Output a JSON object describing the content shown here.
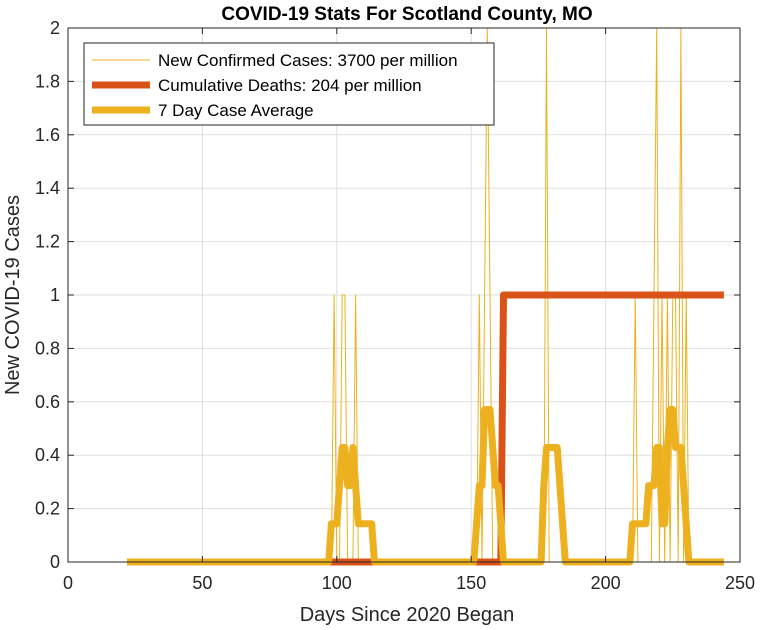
{
  "chart_data": {
    "type": "line",
    "title": "COVID-19 Stats For Scotland County, MO",
    "xlabel": "Days Since 2020 Began",
    "ylabel": "New COVID-19 Cases",
    "xlim": [
      0,
      250
    ],
    "ylim": [
      0,
      2
    ],
    "xticks": [
      0,
      50,
      100,
      150,
      200,
      250
    ],
    "yticks": [
      0,
      0.2,
      0.4,
      0.6,
      0.8,
      1,
      1.2,
      1.4,
      1.6,
      1.8,
      2
    ],
    "xtick_labels": [
      "0",
      "50",
      "100",
      "150",
      "200",
      "250"
    ],
    "ytick_labels": [
      "0",
      "0.2",
      "0.4",
      "0.6",
      "0.8",
      "1",
      "1.2",
      "1.4",
      "1.6",
      "1.8",
      "2"
    ],
    "grid": true,
    "legend_position": "top-left",
    "series": [
      {
        "name": "New Confirmed Cases: 3700 per million",
        "color": "#EDB120",
        "style": "thin",
        "x": [
          22,
          98,
          99,
          100,
          101,
          102,
          103,
          104,
          105,
          106,
          107,
          108,
          109,
          152,
          153,
          154,
          155,
          156,
          157,
          158,
          159,
          160,
          177,
          178,
          179,
          210,
          211,
          212,
          217,
          218,
          219,
          220,
          221,
          222,
          223,
          224,
          225,
          226,
          227,
          228,
          229,
          230,
          231,
          244
        ],
        "y": [
          0,
          0,
          1,
          0,
          0,
          1,
          1,
          0,
          0,
          0,
          1,
          0,
          0,
          0,
          1,
          0,
          1,
          2,
          1,
          0,
          0,
          0,
          0,
          2,
          0,
          0,
          1,
          0,
          0,
          1,
          2,
          0,
          1,
          0,
          1,
          0,
          1,
          1,
          0,
          2,
          0,
          1,
          0,
          0
        ]
      },
      {
        "name": "Cumulative Deaths: 204 per million",
        "color": "#D95319",
        "style": "thick",
        "x": [
          22,
          161,
          162,
          244
        ],
        "y": [
          0,
          0,
          1,
          1
        ]
      },
      {
        "name": "7 Day Case Average",
        "color": "#EDB120",
        "style": "thick",
        "x": [
          22,
          97,
          98,
          99,
          100,
          101,
          102,
          103,
          104,
          105,
          106,
          107,
          108,
          109,
          110,
          111,
          112,
          113,
          114,
          115,
          150,
          151,
          152,
          153,
          154,
          155,
          156,
          157,
          158,
          159,
          160,
          161,
          162,
          175,
          176,
          177,
          178,
          179,
          180,
          181,
          182,
          183,
          184,
          185,
          186,
          208,
          209,
          210,
          211,
          212,
          213,
          214,
          215,
          216,
          217,
          218,
          219,
          220,
          221,
          222,
          223,
          224,
          225,
          226,
          227,
          228,
          229,
          230,
          231,
          232,
          233,
          234,
          235,
          236,
          237,
          244
        ],
        "y": [
          0,
          0,
          0.143,
          0.143,
          0.143,
          0.286,
          0.429,
          0.429,
          0.286,
          0.286,
          0.429,
          0.286,
          0.143,
          0.143,
          0.143,
          0.143,
          0.143,
          0.143,
          0,
          0,
          0,
          0,
          0.143,
          0.286,
          0.286,
          0.571,
          0.571,
          0.571,
          0.429,
          0.286,
          0.286,
          0.143,
          0,
          0,
          0,
          0.286,
          0.429,
          0.429,
          0.429,
          0.429,
          0.429,
          0.286,
          0.143,
          0,
          0,
          0,
          0,
          0.143,
          0.143,
          0.143,
          0.143,
          0.143,
          0.143,
          0.286,
          0.286,
          0.286,
          0.429,
          0.429,
          0.143,
          0.143,
          0.429,
          0.571,
          0.571,
          0.429,
          0.429,
          0.429,
          0.286,
          0.143,
          0,
          0,
          0,
          0,
          0,
          0,
          0,
          0
        ]
      }
    ]
  }
}
